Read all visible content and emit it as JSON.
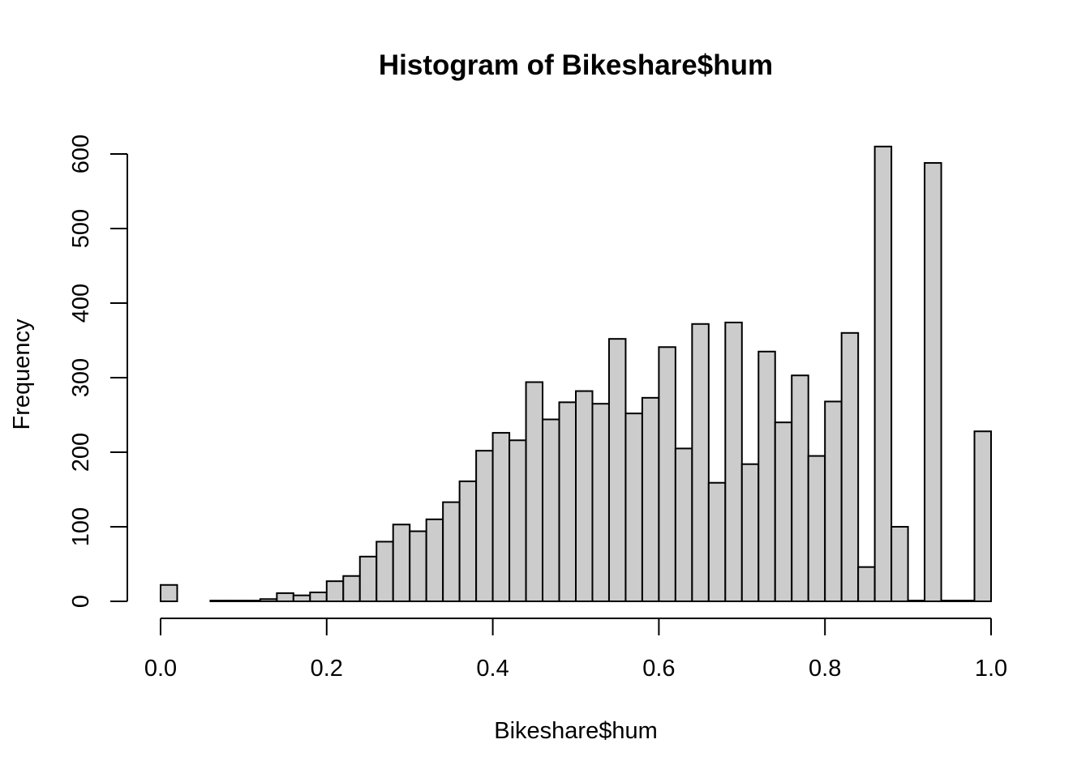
{
  "chart_data": {
    "type": "bar",
    "title": "Histogram of Bikeshare$hum",
    "xlabel": "Bikeshare$hum",
    "ylabel": "Frequency",
    "bin_width": 0.02,
    "x_range": [
      0,
      1
    ],
    "xlim": [
      0,
      1
    ],
    "ylim": [
      0,
      610
    ],
    "x_ticks": [
      0.0,
      0.2,
      0.4,
      0.6,
      0.8,
      1.0
    ],
    "x_tick_labels": [
      "0.0",
      "0.2",
      "0.4",
      "0.6",
      "0.8",
      "1.0"
    ],
    "y_ticks": [
      0,
      100,
      200,
      300,
      400,
      500,
      600
    ],
    "y_tick_labels": [
      "0",
      "100",
      "200",
      "300",
      "400",
      "500",
      "600"
    ],
    "bar_fill": "#cccccc",
    "bar_stroke": "#000000",
    "grid": false,
    "values": [
      22,
      0,
      0,
      1,
      1,
      1,
      3,
      11,
      8,
      12,
      27,
      34,
      60,
      80,
      103,
      94,
      110,
      133,
      161,
      202,
      226,
      216,
      294,
      244,
      267,
      282,
      265,
      352,
      252,
      273,
      341,
      205,
      372,
      159,
      374,
      184,
      335,
      240,
      303,
      195,
      268,
      360,
      46,
      610,
      100,
      1,
      588,
      1,
      1,
      228
    ]
  }
}
